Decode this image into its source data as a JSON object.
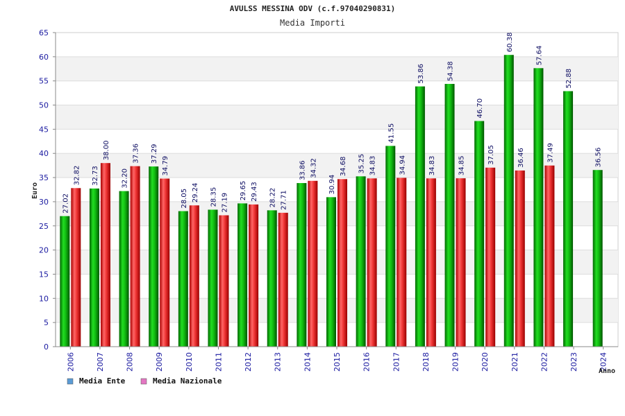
{
  "chart_data": {
    "type": "bar",
    "title": "AVULSS MESSINA ODV (c.f.97040290831)",
    "subtitle": "Media Importi",
    "xlabel": "Anno",
    "ylabel": "Euro",
    "ylim": [
      0,
      65
    ],
    "yticks": [
      0,
      5,
      10,
      15,
      20,
      25,
      30,
      35,
      40,
      45,
      50,
      55,
      60,
      65
    ],
    "grid": "horizontal-bands",
    "legend_position": "bottom-left",
    "categories": [
      "2006",
      "2007",
      "2008",
      "2009",
      "2010",
      "2011",
      "2012",
      "2013",
      "2014",
      "2015",
      "2016",
      "2017",
      "2018",
      "2019",
      "2020",
      "2021",
      "2022",
      "2023",
      "2024"
    ],
    "series": [
      {
        "name": "Media Ente",
        "color": "#00aa00",
        "legend_color": "#5b9bd5",
        "values": [
          27.02,
          32.73,
          32.2,
          37.29,
          28.05,
          28.35,
          29.65,
          28.22,
          33.86,
          30.94,
          35.25,
          41.55,
          53.86,
          54.38,
          46.7,
          60.38,
          57.64,
          52.88,
          36.56
        ],
        "labels": [
          "27.02",
          "32.73",
          "32.20",
          "37.29",
          "28.05",
          "28.35",
          "29.65",
          "28.22",
          "33.86",
          "30.94",
          "35.25",
          "41.55",
          "53.86",
          "54.38",
          "46.70",
          "60.38",
          "57.64",
          "52.88",
          "36.56"
        ]
      },
      {
        "name": "Media Nazionale",
        "color": "#dd2222",
        "legend_color": "#e377c2",
        "values": [
          32.82,
          38.0,
          37.36,
          34.79,
          29.24,
          27.19,
          29.43,
          27.71,
          34.32,
          34.68,
          34.83,
          34.94,
          34.83,
          34.85,
          37.05,
          36.46,
          37.49,
          null,
          null
        ],
        "labels": [
          "32.82",
          "38.00",
          "37.36",
          "34.79",
          "29.24",
          "27.19",
          "29.43",
          "27.71",
          "34.32",
          "34.68",
          "34.83",
          "34.94",
          "34.83",
          "34.85",
          "37.05",
          "36.46",
          "37.49",
          null,
          null
        ]
      }
    ]
  }
}
